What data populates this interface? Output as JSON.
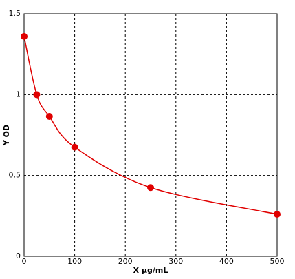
{
  "chart_data": {
    "type": "scatter",
    "x_label": "X μg/mL",
    "y_label": "Y OD",
    "x": [
      0,
      25,
      50,
      100,
      250,
      500
    ],
    "values": [
      1.36,
      1.0,
      0.865,
      0.675,
      0.425,
      0.26
    ],
    "color": "#e00000",
    "line": true,
    "xlim": [
      0,
      500
    ],
    "xticks": [
      0,
      100,
      200,
      300,
      400,
      500
    ],
    "ylim": [
      0,
      1.5
    ],
    "yticks": [
      0,
      0.5,
      1,
      1.5
    ],
    "grid": true
  }
}
